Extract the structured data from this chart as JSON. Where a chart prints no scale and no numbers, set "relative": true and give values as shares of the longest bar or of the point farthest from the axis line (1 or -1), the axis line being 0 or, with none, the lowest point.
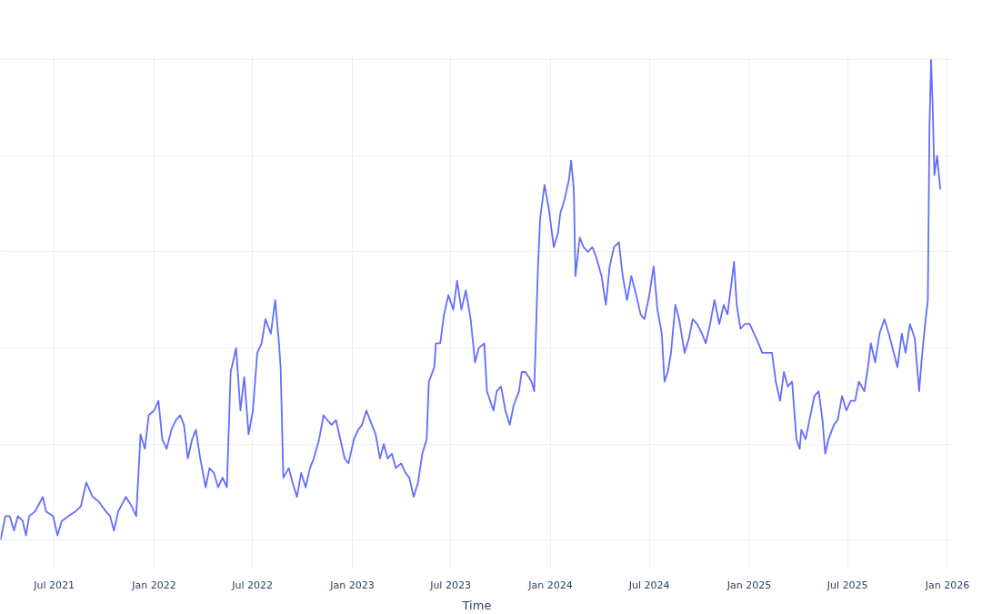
{
  "chart_data": {
    "type": "line",
    "relative": true,
    "xlabel": "Time",
    "grid": true,
    "xlim": [
      "2021-03-24",
      "2026-01-12"
    ],
    "xticks": [
      {
        "value": "2021-07-01",
        "label": "Jul 2021"
      },
      {
        "value": "2022-01-01",
        "label": "Jan 2022"
      },
      {
        "value": "2022-07-01",
        "label": "Jul 2022"
      },
      {
        "value": "2023-01-01",
        "label": "Jan 2023"
      },
      {
        "value": "2023-07-01",
        "label": "Jul 2023"
      },
      {
        "value": "2024-01-01",
        "label": "Jan 2024"
      },
      {
        "value": "2024-07-01",
        "label": "Jul 2024"
      },
      {
        "value": "2025-01-01",
        "label": "Jan 2025"
      },
      {
        "value": "2025-07-01",
        "label": "Jul 2025"
      },
      {
        "value": "2026-01-01",
        "label": "Jan 2026"
      }
    ],
    "series": [
      {
        "color": "#636efa",
        "x": [
          "2021-03-24",
          "2021-04-02",
          "2021-04-10",
          "2021-04-18",
          "2021-04-25",
          "2021-05-04",
          "2021-05-10",
          "2021-05-16",
          "2021-05-27",
          "2021-06-10",
          "2021-06-16",
          "2021-06-29",
          "2021-07-07",
          "2021-07-15",
          "2021-07-27",
          "2021-08-09",
          "2021-08-19",
          "2021-08-29",
          "2021-09-10",
          "2021-09-21",
          "2021-10-04",
          "2021-10-12",
          "2021-10-19",
          "2021-10-27",
          "2021-11-10",
          "2021-11-21",
          "2021-11-29",
          "2021-12-07",
          "2021-12-15",
          "2021-12-22",
          "2022-01-01",
          "2022-01-09",
          "2022-01-16",
          "2022-01-24",
          "2022-02-02",
          "2022-02-10",
          "2022-02-18",
          "2022-02-25",
          "2022-03-04",
          "2022-03-12",
          "2022-03-19",
          "2022-03-27",
          "2022-04-06",
          "2022-04-13",
          "2022-04-21",
          "2022-04-29",
          "2022-05-07",
          "2022-05-15",
          "2022-05-22",
          "2022-06-01",
          "2022-06-09",
          "2022-06-16",
          "2022-06-24",
          "2022-07-02",
          "2022-07-10",
          "2022-07-18",
          "2022-07-25",
          "2022-08-04",
          "2022-08-12",
          "2022-08-19",
          "2022-08-22",
          "2022-08-27",
          "2022-09-06",
          "2022-09-13",
          "2022-09-21",
          "2022-09-29",
          "2022-10-07",
          "2022-10-15",
          "2022-10-22",
          "2022-11-01",
          "2022-11-09",
          "2022-11-16",
          "2022-11-24",
          "2022-12-02",
          "2022-12-10",
          "2022-12-18",
          "2022-12-25",
          "2023-01-04",
          "2023-01-12",
          "2023-01-19",
          "2023-01-27",
          "2023-02-06",
          "2023-02-13",
          "2023-02-21",
          "2023-02-28",
          "2023-03-07",
          "2023-03-15",
          "2023-03-22",
          "2023-04-01",
          "2023-04-09",
          "2023-04-16",
          "2023-04-24",
          "2023-05-02",
          "2023-05-10",
          "2023-05-18",
          "2023-05-22",
          "2023-06-01",
          "2023-06-04",
          "2023-06-12",
          "2023-06-19",
          "2023-06-27",
          "2023-07-06",
          "2023-07-13",
          "2023-07-21",
          "2023-07-29",
          "2023-08-07",
          "2023-08-15",
          "2023-08-22",
          "2023-09-01",
          "2023-09-06",
          "2023-09-12",
          "2023-09-18",
          "2023-09-24",
          "2023-10-02",
          "2023-10-10",
          "2023-10-18",
          "2023-10-25",
          "2023-11-04",
          "2023-11-09",
          "2023-11-16",
          "2023-11-27",
          "2023-12-02",
          "2023-12-09",
          "2023-12-13",
          "2023-12-21",
          "2023-12-29",
          "2024-01-07",
          "2024-01-15",
          "2024-01-19",
          "2024-01-27",
          "2024-02-04",
          "2024-02-08",
          "2024-02-13",
          "2024-02-16",
          "2024-02-24",
          "2024-03-02",
          "2024-03-10",
          "2024-03-18",
          "2024-03-25",
          "2024-04-04",
          "2024-04-12",
          "2024-04-19",
          "2024-04-27",
          "2024-05-06",
          "2024-05-13",
          "2024-05-21",
          "2024-05-29",
          "2024-06-07",
          "2024-06-15",
          "2024-06-22",
          "2024-07-01",
          "2024-07-09",
          "2024-07-16",
          "2024-07-24",
          "2024-07-29",
          "2024-08-04",
          "2024-08-10",
          "2024-08-18",
          "2024-08-25",
          "2024-09-04",
          "2024-09-12",
          "2024-09-19",
          "2024-09-27",
          "2024-10-06",
          "2024-10-13",
          "2024-10-21",
          "2024-10-29",
          "2024-11-07",
          "2024-11-15",
          "2024-11-22",
          "2024-12-01",
          "2024-12-04",
          "2024-12-09",
          "2024-12-16",
          "2024-12-24",
          "2025-01-02",
          "2025-01-10",
          "2025-01-18",
          "2025-01-25",
          "2025-02-04",
          "2025-02-12",
          "2025-02-19",
          "2025-02-27",
          "2025-03-06",
          "2025-03-13",
          "2025-03-21",
          "2025-03-29",
          "2025-04-04",
          "2025-04-07",
          "2025-04-15",
          "2025-04-22",
          "2025-05-01",
          "2025-05-09",
          "2025-05-16",
          "2025-05-21",
          "2025-05-27",
          "2025-06-06",
          "2025-06-13",
          "2025-06-21",
          "2025-06-29",
          "2025-07-07",
          "2025-07-15",
          "2025-07-22",
          "2025-08-01",
          "2025-08-09",
          "2025-08-13",
          "2025-08-21",
          "2025-08-29",
          "2025-09-07",
          "2025-09-15",
          "2025-09-22",
          "2025-10-01",
          "2025-10-09",
          "2025-10-16",
          "2025-10-24",
          "2025-11-02",
          "2025-11-10",
          "2025-11-15",
          "2025-11-21",
          "2025-11-26",
          "2025-11-29",
          "2025-12-02",
          "2025-12-05",
          "2025-12-08",
          "2025-12-13",
          "2025-12-19"
        ],
        "values": [
          0,
          0.05,
          0.05,
          0.02,
          0.05,
          0.04,
          0.01,
          0.05,
          0.06,
          0.09,
          0.06,
          0.05,
          0.01,
          0.04,
          0.05,
          0.06,
          0.07,
          0.12,
          0.09,
          0.08,
          0.06,
          0.05,
          0.02,
          0.06,
          0.09,
          0.07,
          0.05,
          0.22,
          0.19,
          0.26,
          0.27,
          0.29,
          0.21,
          0.19,
          0.23,
          0.25,
          0.26,
          0.24,
          0.17,
          0.21,
          0.23,
          0.17,
          0.11,
          0.15,
          0.14,
          0.11,
          0.13,
          0.11,
          0.35,
          0.4,
          0.27,
          0.34,
          0.22,
          0.27,
          0.39,
          0.41,
          0.46,
          0.43,
          0.5,
          0.41,
          0.36,
          0.13,
          0.15,
          0.12,
          0.09,
          0.14,
          0.11,
          0.15,
          0.17,
          0.21,
          0.26,
          0.25,
          0.24,
          0.25,
          0.21,
          0.17,
          0.16,
          0.21,
          0.23,
          0.24,
          0.27,
          0.24,
          0.22,
          0.17,
          0.2,
          0.17,
          0.18,
          0.15,
          0.16,
          0.14,
          0.13,
          0.09,
          0.12,
          0.18,
          0.21,
          0.33,
          0.36,
          0.41,
          0.41,
          0.47,
          0.51,
          0.48,
          0.54,
          0.48,
          0.52,
          0.46,
          0.37,
          0.4,
          0.41,
          0.31,
          0.29,
          0.27,
          0.31,
          0.32,
          0.27,
          0.24,
          0.28,
          0.31,
          0.35,
          0.35,
          0.33,
          0.31,
          0.57,
          0.67,
          0.74,
          0.69,
          0.61,
          0.64,
          0.68,
          0.71,
          0.75,
          0.79,
          0.73,
          0.55,
          0.63,
          0.61,
          0.6,
          0.61,
          0.59,
          0.55,
          0.49,
          0.57,
          0.61,
          0.62,
          0.55,
          0.5,
          0.55,
          0.51,
          0.47,
          0.46,
          0.51,
          0.57,
          0.48,
          0.43,
          0.33,
          0.35,
          0.39,
          0.49,
          0.46,
          0.39,
          0.42,
          0.46,
          0.45,
          0.43,
          0.41,
          0.45,
          0.5,
          0.45,
          0.49,
          0.47,
          0.55,
          0.58,
          0.49,
          0.44,
          0.45,
          0.45,
          0.43,
          0.41,
          0.39,
          0.39,
          0.39,
          0.33,
          0.29,
          0.35,
          0.32,
          0.33,
          0.21,
          0.19,
          0.23,
          0.21,
          0.25,
          0.3,
          0.31,
          0.25,
          0.18,
          0.21,
          0.24,
          0.25,
          0.3,
          0.27,
          0.29,
          0.29,
          0.33,
          0.31,
          0.37,
          0.41,
          0.37,
          0.43,
          0.46,
          0.43,
          0.4,
          0.36,
          0.43,
          0.39,
          0.45,
          0.42,
          0.31,
          0.38,
          0.45,
          0.5,
          0.86,
          1,
          0.9,
          0.76,
          0.8,
          0.73
        ]
      }
    ]
  }
}
